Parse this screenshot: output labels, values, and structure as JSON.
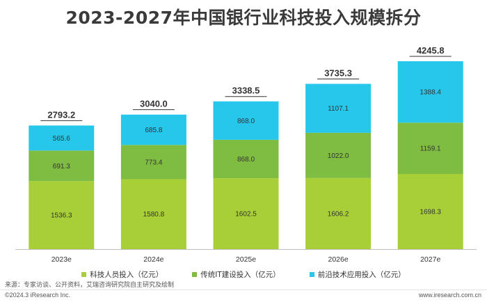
{
  "title": "2023-2027年中国银行业科技投入规模拆分",
  "chart_data": {
    "type": "bar",
    "stacked": true,
    "categories": [
      "2023e",
      "2024e",
      "2025e",
      "2026e",
      "2027e"
    ],
    "series": [
      {
        "name": "科技人员投入（亿元）",
        "color": "#a9cf38",
        "values": [
          1536.3,
          1580.8,
          1602.5,
          1606.2,
          1698.3
        ]
      },
      {
        "name": "传统IT建设投入（亿元）",
        "color": "#7fbd42",
        "values": [
          691.3,
          773.4,
          868.0,
          1022.0,
          1159.1
        ]
      },
      {
        "name": "前沿技术应用投入（亿元）",
        "color": "#27c7ec",
        "values": [
          565.6,
          685.8,
          868.0,
          1107.1,
          1388.4
        ]
      }
    ],
    "value_labels": [
      [
        "1536.3",
        "1580.8",
        "1602.5",
        "1606.2",
        "1698.3"
      ],
      [
        "691.3",
        "773.4",
        "868.0",
        "1022.0",
        "1159.1"
      ],
      [
        "565.6",
        "685.8",
        "868.0",
        "1107.1",
        "1388.4"
      ]
    ],
    "totals": [
      "2793.2",
      "3040.0",
      "3338.5",
      "3735.3",
      "4245.8"
    ],
    "ylim": [
      0,
      4245.8
    ],
    "grid": false,
    "legend_position": "bottom"
  },
  "source": "来源：专家访谈、公开资料，艾瑞咨询研究院自主研究及绘制",
  "footer_left": "©2024.3 iResearch Inc.",
  "footer_right": "www.iresearch.com.cn"
}
